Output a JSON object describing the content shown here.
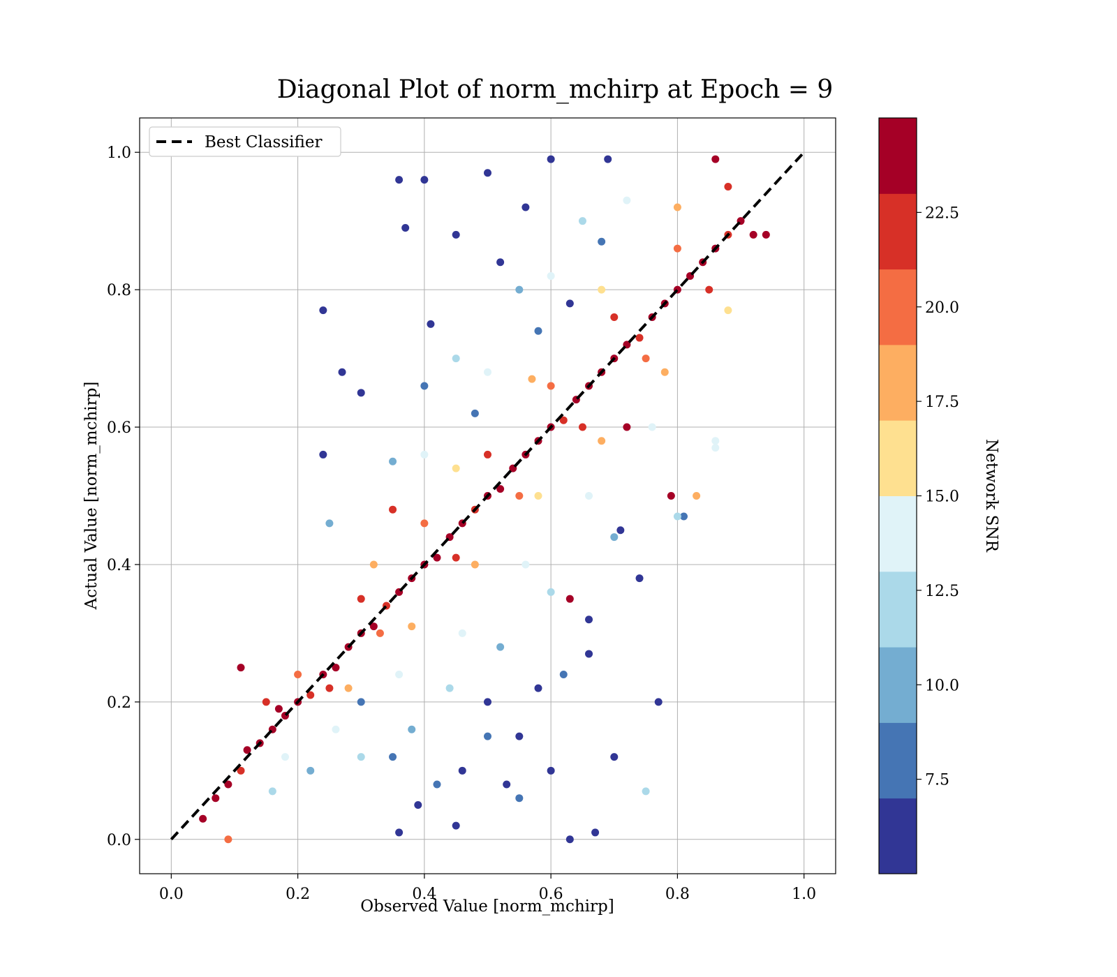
{
  "chart_data": {
    "type": "scatter",
    "title": "Diagonal Plot of norm_mchirp at Epoch = 9",
    "xlabel": "Observed Value [norm_mchirp]",
    "ylabel": "Actual Value [norm_mchirp]",
    "xlim": [
      -0.05,
      1.05
    ],
    "ylim": [
      -0.05,
      1.05
    ],
    "xticks": [
      "0.0",
      "0.2",
      "0.4",
      "0.6",
      "0.8",
      "1.0"
    ],
    "yticks": [
      "0.0",
      "0.2",
      "0.4",
      "0.6",
      "0.8",
      "1.0"
    ],
    "grid": true,
    "legend": {
      "position": "top-left",
      "entries": [
        {
          "label": "Best Classifier",
          "style": "dashed",
          "color": "#000000"
        }
      ]
    },
    "reference_line": {
      "label": "Best Classifier",
      "x": [
        0,
        1
      ],
      "y": [
        0,
        1
      ]
    },
    "colorbar": {
      "label": "Network SNR",
      "ticks": [
        "7.5",
        "10.0",
        "12.5",
        "15.0",
        "17.5",
        "20.0",
        "22.5"
      ],
      "tick_values": [
        7.5,
        10.0,
        12.5,
        15.0,
        17.5,
        20.0,
        22.5
      ],
      "range": [
        5.0,
        25.0
      ],
      "colors": [
        "#313695",
        "#4575b4",
        "#74add1",
        "#abd9e9",
        "#e0f3f8",
        "#fee090",
        "#fdae61",
        "#f46d43",
        "#d73027",
        "#a50026"
      ]
    },
    "marker_colors": [
      "#313695",
      "#4575b4",
      "#74add1",
      "#abd9e9",
      "#e0f3f8",
      "#fee090",
      "#fdae61",
      "#f46d43",
      "#d73027",
      "#a50026"
    ],
    "points": [
      {
        "x": 0.05,
        "y": 0.03,
        "snr": 24
      },
      {
        "x": 0.07,
        "y": 0.06,
        "snr": 23
      },
      {
        "x": 0.09,
        "y": 0.08,
        "snr": 24
      },
      {
        "x": 0.11,
        "y": 0.1,
        "snr": 22
      },
      {
        "x": 0.12,
        "y": 0.13,
        "snr": 24
      },
      {
        "x": 0.14,
        "y": 0.14,
        "snr": 24
      },
      {
        "x": 0.16,
        "y": 0.16,
        "snr": 23
      },
      {
        "x": 0.18,
        "y": 0.18,
        "snr": 24
      },
      {
        "x": 0.2,
        "y": 0.2,
        "snr": 24
      },
      {
        "x": 0.22,
        "y": 0.21,
        "snr": 21
      },
      {
        "x": 0.24,
        "y": 0.24,
        "snr": 24
      },
      {
        "x": 0.26,
        "y": 0.25,
        "snr": 24
      },
      {
        "x": 0.28,
        "y": 0.28,
        "snr": 23
      },
      {
        "x": 0.3,
        "y": 0.3,
        "snr": 24
      },
      {
        "x": 0.32,
        "y": 0.31,
        "snr": 24
      },
      {
        "x": 0.34,
        "y": 0.34,
        "snr": 22
      },
      {
        "x": 0.36,
        "y": 0.36,
        "snr": 24
      },
      {
        "x": 0.38,
        "y": 0.38,
        "snr": 24
      },
      {
        "x": 0.4,
        "y": 0.4,
        "snr": 23
      },
      {
        "x": 0.42,
        "y": 0.41,
        "snr": 24
      },
      {
        "x": 0.44,
        "y": 0.44,
        "snr": 24
      },
      {
        "x": 0.46,
        "y": 0.46,
        "snr": 24
      },
      {
        "x": 0.48,
        "y": 0.48,
        "snr": 22
      },
      {
        "x": 0.5,
        "y": 0.5,
        "snr": 24
      },
      {
        "x": 0.52,
        "y": 0.51,
        "snr": 24
      },
      {
        "x": 0.54,
        "y": 0.54,
        "snr": 23
      },
      {
        "x": 0.56,
        "y": 0.56,
        "snr": 24
      },
      {
        "x": 0.58,
        "y": 0.58,
        "snr": 24
      },
      {
        "x": 0.6,
        "y": 0.6,
        "snr": 24
      },
      {
        "x": 0.62,
        "y": 0.61,
        "snr": 22
      },
      {
        "x": 0.64,
        "y": 0.64,
        "snr": 24
      },
      {
        "x": 0.66,
        "y": 0.66,
        "snr": 24
      },
      {
        "x": 0.68,
        "y": 0.68,
        "snr": 23
      },
      {
        "x": 0.7,
        "y": 0.7,
        "snr": 24
      },
      {
        "x": 0.72,
        "y": 0.72,
        "snr": 24
      },
      {
        "x": 0.74,
        "y": 0.73,
        "snr": 22
      },
      {
        "x": 0.76,
        "y": 0.76,
        "snr": 24
      },
      {
        "x": 0.78,
        "y": 0.78,
        "snr": 24
      },
      {
        "x": 0.8,
        "y": 0.8,
        "snr": 24
      },
      {
        "x": 0.82,
        "y": 0.82,
        "snr": 23
      },
      {
        "x": 0.84,
        "y": 0.84,
        "snr": 24
      },
      {
        "x": 0.86,
        "y": 0.86,
        "snr": 24
      },
      {
        "x": 0.88,
        "y": 0.88,
        "snr": 22
      },
      {
        "x": 0.9,
        "y": 0.9,
        "snr": 24
      },
      {
        "x": 0.92,
        "y": 0.88,
        "snr": 24
      },
      {
        "x": 0.25,
        "y": 0.22,
        "snr": 21
      },
      {
        "x": 0.33,
        "y": 0.3,
        "snr": 20
      },
      {
        "x": 0.45,
        "y": 0.41,
        "snr": 21
      },
      {
        "x": 0.55,
        "y": 0.5,
        "snr": 20
      },
      {
        "x": 0.65,
        "y": 0.6,
        "snr": 21
      },
      {
        "x": 0.75,
        "y": 0.7,
        "snr": 20
      },
      {
        "x": 0.85,
        "y": 0.8,
        "snr": 21
      },
      {
        "x": 0.2,
        "y": 0.24,
        "snr": 20
      },
      {
        "x": 0.3,
        "y": 0.35,
        "snr": 21
      },
      {
        "x": 0.4,
        "y": 0.46,
        "snr": 20
      },
      {
        "x": 0.5,
        "y": 0.56,
        "snr": 21
      },
      {
        "x": 0.6,
        "y": 0.66,
        "snr": 20
      },
      {
        "x": 0.7,
        "y": 0.76,
        "snr": 21
      },
      {
        "x": 0.8,
        "y": 0.86,
        "snr": 20
      },
      {
        "x": 0.88,
        "y": 0.95,
        "snr": 21
      },
      {
        "x": 0.28,
        "y": 0.22,
        "snr": 18
      },
      {
        "x": 0.38,
        "y": 0.31,
        "snr": 17
      },
      {
        "x": 0.48,
        "y": 0.4,
        "snr": 18
      },
      {
        "x": 0.58,
        "y": 0.5,
        "snr": 16
      },
      {
        "x": 0.68,
        "y": 0.58,
        "snr": 18
      },
      {
        "x": 0.78,
        "y": 0.68,
        "snr": 17
      },
      {
        "x": 0.88,
        "y": 0.77,
        "snr": 16
      },
      {
        "x": 0.32,
        "y": 0.4,
        "snr": 17
      },
      {
        "x": 0.45,
        "y": 0.54,
        "snr": 16
      },
      {
        "x": 0.57,
        "y": 0.67,
        "snr": 17
      },
      {
        "x": 0.68,
        "y": 0.8,
        "snr": 16
      },
      {
        "x": 0.8,
        "y": 0.92,
        "snr": 17
      },
      {
        "x": 0.18,
        "y": 0.12,
        "snr": 14
      },
      {
        "x": 0.26,
        "y": 0.16,
        "snr": 13
      },
      {
        "x": 0.36,
        "y": 0.24,
        "snr": 14
      },
      {
        "x": 0.46,
        "y": 0.3,
        "snr": 13
      },
      {
        "x": 0.56,
        "y": 0.4,
        "snr": 14
      },
      {
        "x": 0.66,
        "y": 0.5,
        "snr": 13
      },
      {
        "x": 0.76,
        "y": 0.6,
        "snr": 14
      },
      {
        "x": 0.86,
        "y": 0.58,
        "snr": 13
      },
      {
        "x": 0.4,
        "y": 0.56,
        "snr": 13
      },
      {
        "x": 0.5,
        "y": 0.68,
        "snr": 14
      },
      {
        "x": 0.6,
        "y": 0.82,
        "snr": 13
      },
      {
        "x": 0.72,
        "y": 0.93,
        "snr": 14
      },
      {
        "x": 0.16,
        "y": 0.07,
        "snr": 11
      },
      {
        "x": 0.22,
        "y": 0.1,
        "snr": 10
      },
      {
        "x": 0.3,
        "y": 0.12,
        "snr": 11
      },
      {
        "x": 0.38,
        "y": 0.16,
        "snr": 10
      },
      {
        "x": 0.44,
        "y": 0.22,
        "snr": 11
      },
      {
        "x": 0.52,
        "y": 0.28,
        "snr": 10
      },
      {
        "x": 0.6,
        "y": 0.36,
        "snr": 11
      },
      {
        "x": 0.7,
        "y": 0.44,
        "snr": 10
      },
      {
        "x": 0.8,
        "y": 0.47,
        "snr": 11
      },
      {
        "x": 0.35,
        "y": 0.55,
        "snr": 10
      },
      {
        "x": 0.45,
        "y": 0.7,
        "snr": 11
      },
      {
        "x": 0.55,
        "y": 0.8,
        "snr": 10
      },
      {
        "x": 0.65,
        "y": 0.9,
        "snr": 11
      },
      {
        "x": 0.25,
        "y": 0.46,
        "snr": 10
      },
      {
        "x": 0.35,
        "y": 0.12,
        "snr": 8
      },
      {
        "x": 0.42,
        "y": 0.08,
        "snr": 7
      },
      {
        "x": 0.5,
        "y": 0.15,
        "snr": 8
      },
      {
        "x": 0.55,
        "y": 0.06,
        "snr": 7
      },
      {
        "x": 0.62,
        "y": 0.24,
        "snr": 8
      },
      {
        "x": 0.3,
        "y": 0.2,
        "snr": 7
      },
      {
        "x": 0.48,
        "y": 0.62,
        "snr": 8
      },
      {
        "x": 0.58,
        "y": 0.74,
        "snr": 7
      },
      {
        "x": 0.68,
        "y": 0.87,
        "snr": 8
      },
      {
        "x": 0.4,
        "y": 0.66,
        "snr": 7
      },
      {
        "x": 0.24,
        "y": 0.77,
        "snr": 6
      },
      {
        "x": 0.24,
        "y": 0.56,
        "snr": 6
      },
      {
        "x": 0.36,
        "y": 0.96,
        "snr": 6
      },
      {
        "x": 0.4,
        "y": 0.96,
        "snr": 6
      },
      {
        "x": 0.5,
        "y": 0.97,
        "snr": 6
      },
      {
        "x": 0.6,
        "y": 0.99,
        "snr": 6
      },
      {
        "x": 0.69,
        "y": 0.99,
        "snr": 6
      },
      {
        "x": 0.37,
        "y": 0.89,
        "snr": 6
      },
      {
        "x": 0.45,
        "y": 0.88,
        "snr": 6
      },
      {
        "x": 0.3,
        "y": 0.65,
        "snr": 6
      },
      {
        "x": 0.27,
        "y": 0.68,
        "snr": 6
      },
      {
        "x": 0.41,
        "y": 0.75,
        "snr": 6
      },
      {
        "x": 0.52,
        "y": 0.84,
        "snr": 6
      },
      {
        "x": 0.56,
        "y": 0.92,
        "snr": 6
      },
      {
        "x": 0.63,
        "y": 0.78,
        "snr": 6
      },
      {
        "x": 0.71,
        "y": 0.45,
        "snr": 6
      },
      {
        "x": 0.77,
        "y": 0.2,
        "snr": 6
      },
      {
        "x": 0.7,
        "y": 0.12,
        "snr": 6
      },
      {
        "x": 0.63,
        "y": 0.0,
        "snr": 6
      },
      {
        "x": 0.67,
        "y": 0.01,
        "snr": 6
      },
      {
        "x": 0.6,
        "y": 0.1,
        "snr": 6
      },
      {
        "x": 0.55,
        "y": 0.15,
        "snr": 6
      },
      {
        "x": 0.66,
        "y": 0.27,
        "snr": 6
      },
      {
        "x": 0.74,
        "y": 0.38,
        "snr": 6
      },
      {
        "x": 0.45,
        "y": 0.02,
        "snr": 6
      },
      {
        "x": 0.36,
        "y": 0.01,
        "snr": 6
      },
      {
        "x": 0.5,
        "y": 0.2,
        "snr": 6
      },
      {
        "x": 0.39,
        "y": 0.05,
        "snr": 6
      },
      {
        "x": 0.66,
        "y": 0.32,
        "snr": 6
      },
      {
        "x": 0.58,
        "y": 0.22,
        "snr": 6
      },
      {
        "x": 0.46,
        "y": 0.1,
        "snr": 6
      },
      {
        "x": 0.53,
        "y": 0.08,
        "snr": 6
      },
      {
        "x": 0.11,
        "y": 0.25,
        "snr": 24
      },
      {
        "x": 0.79,
        "y": 0.5,
        "snr": 24
      },
      {
        "x": 0.72,
        "y": 0.6,
        "snr": 24
      },
      {
        "x": 0.63,
        "y": 0.35,
        "snr": 24
      },
      {
        "x": 0.94,
        "y": 0.88,
        "snr": 24
      },
      {
        "x": 0.86,
        "y": 0.99,
        "snr": 24
      },
      {
        "x": 0.35,
        "y": 0.48,
        "snr": 21
      },
      {
        "x": 0.15,
        "y": 0.2,
        "snr": 22
      },
      {
        "x": 0.17,
        "y": 0.19,
        "snr": 24
      },
      {
        "x": 0.09,
        "y": 0.0,
        "snr": 19
      },
      {
        "x": 0.83,
        "y": 0.5,
        "snr": 18
      },
      {
        "x": 0.86,
        "y": 0.57,
        "snr": 14
      },
      {
        "x": 0.75,
        "y": 0.07,
        "snr": 12
      },
      {
        "x": 0.81,
        "y": 0.47,
        "snr": 8
      }
    ]
  }
}
